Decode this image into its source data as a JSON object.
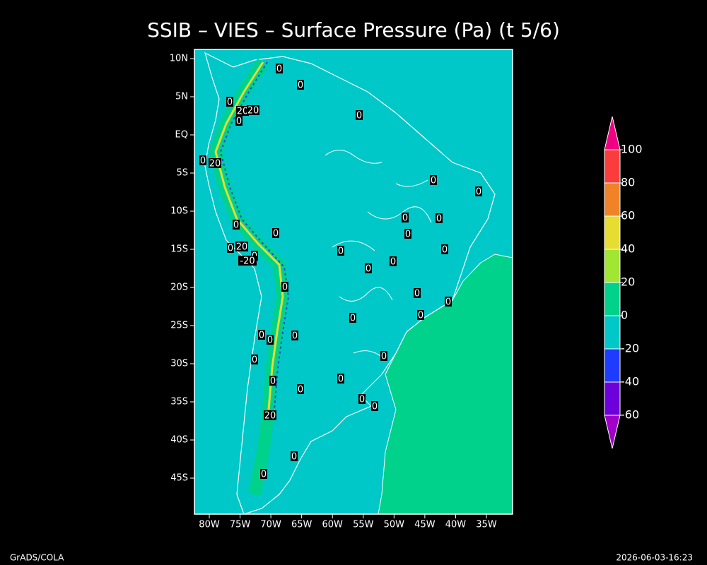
{
  "title": "SSIB – VIES – Surface Pressure (Pa) (t 5/6)",
  "lat_ticks": [
    {
      "value": 10,
      "label": "10N"
    },
    {
      "value": 5,
      "label": "5N"
    },
    {
      "value": 0,
      "label": "EQ"
    },
    {
      "value": -5,
      "label": "5S"
    },
    {
      "value": -10,
      "label": "10S"
    },
    {
      "value": -15,
      "label": "15S"
    },
    {
      "value": -20,
      "label": "20S"
    },
    {
      "value": -25,
      "label": "25S"
    },
    {
      "value": -30,
      "label": "30S"
    },
    {
      "value": -35,
      "label": "35S"
    },
    {
      "value": -40,
      "label": "40S"
    },
    {
      "value": -45,
      "label": "45S"
    }
  ],
  "lon_ticks": [
    {
      "value": -80,
      "label": "80W"
    },
    {
      "value": -75,
      "label": "75W"
    },
    {
      "value": -70,
      "label": "70W"
    },
    {
      "value": -65,
      "label": "65W"
    },
    {
      "value": -60,
      "label": "60W"
    },
    {
      "value": -55,
      "label": "55W"
    },
    {
      "value": -50,
      "label": "50W"
    },
    {
      "value": -45,
      "label": "45W"
    },
    {
      "value": -40,
      "label": "40W"
    },
    {
      "value": -35,
      "label": "35W"
    }
  ],
  "colorbar": {
    "levels": [
      -60,
      -40,
      -20,
      0,
      20,
      40,
      60,
      80,
      100
    ],
    "colors": [
      "#a000c8",
      "#6e00dc",
      "#1e3cff",
      "#00c8c8",
      "#00d28c",
      "#a0e632",
      "#e6dc32",
      "#f08228",
      "#fa3c3c",
      "#f00082"
    ]
  },
  "contour_labels": [
    0,
    0,
    0,
    20,
    20,
    0,
    0,
    0,
    20,
    0,
    0,
    0,
    0,
    0,
    0,
    0,
    0,
    20,
    0,
    -20,
    0,
    0,
    0,
    0,
    0,
    0,
    0,
    0,
    0,
    0,
    0,
    0,
    0,
    0,
    0,
    0,
    0,
    0,
    0,
    20,
    0,
    0
  ],
  "footer_left": "GrADS/COLA",
  "footer_right": "2026-06-03-16:23"
}
